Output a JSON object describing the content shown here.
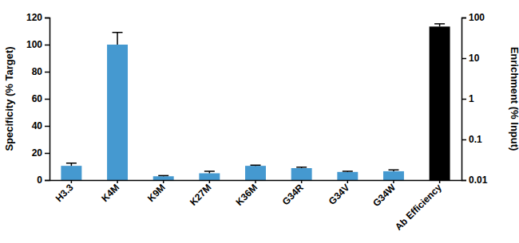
{
  "chart_data": {
    "type": "bar",
    "categories": [
      "H3.3",
      "K4M",
      "K9M",
      "K27M",
      "K36M",
      "G34R",
      "G34V",
      "G34W",
      "Ab Efficiency"
    ],
    "series": [
      {
        "color": "#4599d0",
        "values": [
          10.5,
          100,
          2.8,
          5,
          10.5,
          8.8,
          6,
          6.5,
          null
        ],
        "errors": [
          2,
          9,
          0.5,
          1.5,
          0.5,
          0.7,
          0.5,
          1,
          null
        ]
      },
      {
        "color": "#000000",
        "axis": "y2",
        "values": [
          null,
          null,
          null,
          null,
          null,
          null,
          null,
          null,
          60
        ],
        "errors": [
          null,
          null,
          null,
          null,
          null,
          null,
          null,
          null,
          10
        ]
      }
    ],
    "y_label": "Specificity (% Target)",
    "y2_label": "Enrichment (% Input)",
    "ylim": [
      0,
      120
    ],
    "yticks": [
      0,
      20,
      40,
      60,
      80,
      100,
      120
    ],
    "y2lim": [
      0.01,
      100
    ],
    "y2ticks": [
      0.01,
      0.1,
      1,
      10,
      100
    ],
    "log": "y2",
    "grid": false
  }
}
